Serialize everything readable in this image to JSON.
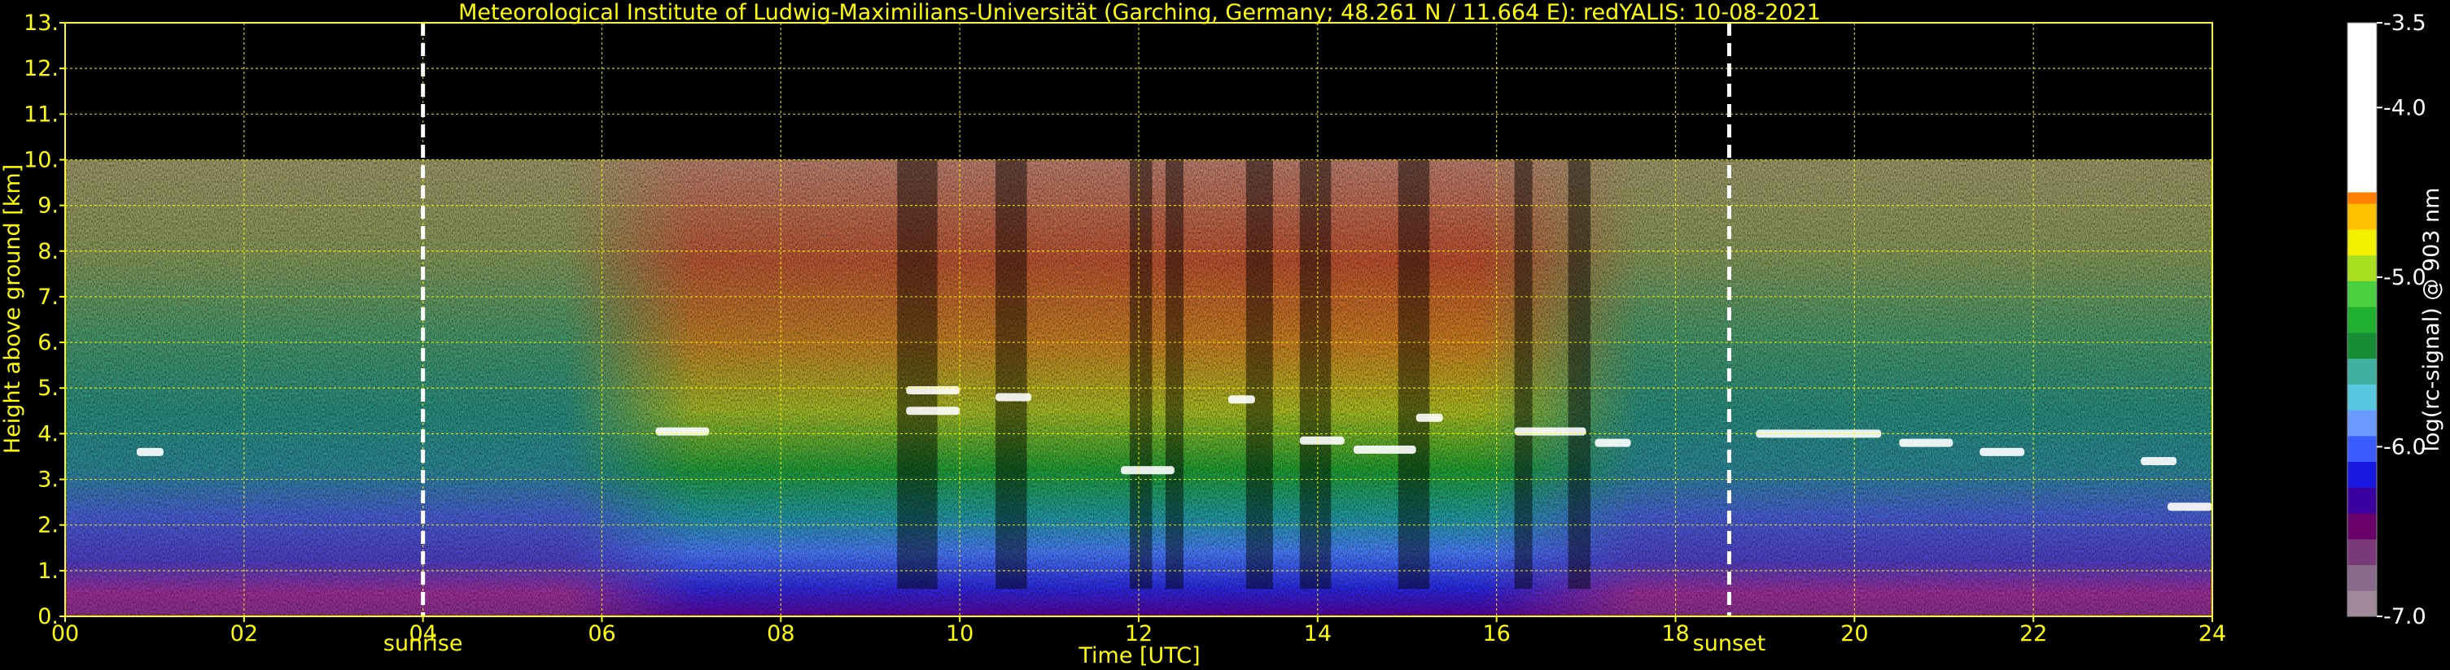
{
  "chart_data": {
    "type": "heatmap",
    "title": "Meteorological Institute of Ludwig-Maximilians-Universität (Garching, Germany; 48.261 N / 11.664 E):    redYALIS: 10-08-2021",
    "xlabel": "Time [UTC]",
    "ylabel": "Height above ground [km]",
    "xlim": [
      0,
      24
    ],
    "ylim": [
      0,
      13
    ],
    "x_ticks": [
      "00",
      "02",
      "04",
      "06",
      "08",
      "10",
      "12",
      "14",
      "16",
      "18",
      "20",
      "22",
      "24"
    ],
    "y_ticks": [
      "0.",
      "1.",
      "2.",
      "3.",
      "4.",
      "5.",
      "6.",
      "7.",
      "8.",
      "9.",
      "10.",
      "11.",
      "12.",
      "13."
    ],
    "grid": true,
    "signal_top_km": 10,
    "markers": [
      {
        "label": "sunrise",
        "x": 4.0
      },
      {
        "label": "sunset",
        "x": 18.6
      }
    ],
    "colorbar": {
      "label": "log(rc-signal) @ 903 nm",
      "range": [
        -7.0,
        -3.5
      ],
      "ticks": [
        "-3.5",
        "-4.0",
        "-5.0",
        "-6.0",
        "-7.0"
      ],
      "tick_values": [
        -3.5,
        -4.0,
        -5.0,
        -6.0,
        -7.0
      ],
      "colors": [
        "#a08a9a",
        "#8a6a8a",
        "#7a3a7a",
        "#6a006a",
        "#3a00a0",
        "#1818e0",
        "#3a5cff",
        "#6a9aff",
        "#58c8e0",
        "#40b0a0",
        "#168c34",
        "#20b030",
        "#48d040",
        "#a8e020",
        "#f0f000",
        "#ffc000",
        "#ff8000",
        "#ff3000",
        "#ee0000",
        "#f08080",
        "#f0c0c0",
        "#f4e0e0",
        "#ffffff"
      ]
    },
    "cloud_layers": [
      {
        "x": [
          0.8,
          1.1
        ],
        "y": 3.6
      },
      {
        "x": [
          6.6,
          7.2
        ],
        "y": 4.05
      },
      {
        "x": [
          9.4,
          10.0
        ],
        "y": 4.95
      },
      {
        "x": [
          9.4,
          10.0
        ],
        "y": 4.5
      },
      {
        "x": [
          10.4,
          10.8
        ],
        "y": 4.8
      },
      {
        "x": [
          11.8,
          12.4
        ],
        "y": 3.2
      },
      {
        "x": [
          13.0,
          13.3
        ],
        "y": 4.75
      },
      {
        "x": [
          13.8,
          14.3
        ],
        "y": 3.85
      },
      {
        "x": [
          14.4,
          15.1
        ],
        "y": 3.65
      },
      {
        "x": [
          15.1,
          15.4
        ],
        "y": 4.35
      },
      {
        "x": [
          16.2,
          17.0
        ],
        "y": 4.05
      },
      {
        "x": [
          17.1,
          17.5
        ],
        "y": 3.8
      },
      {
        "x": [
          18.9,
          20.3
        ],
        "y": 4.0
      },
      {
        "x": [
          20.5,
          21.1
        ],
        "y": 3.8
      },
      {
        "x": [
          21.4,
          21.9
        ],
        "y": 3.6
      },
      {
        "x": [
          23.2,
          23.6
        ],
        "y": 3.4
      },
      {
        "x": [
          23.5,
          24.0
        ],
        "y": 2.4
      }
    ]
  }
}
